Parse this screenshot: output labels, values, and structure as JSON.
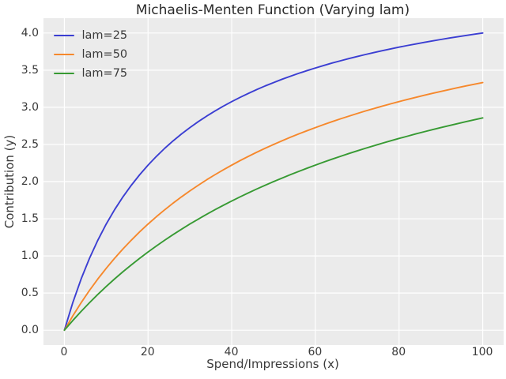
{
  "chart_data": {
    "type": "line",
    "title": "Michaelis-Menten Function (Varying lam)",
    "xlabel": "Spend/Impressions (x)",
    "ylabel": "Contribution (y)",
    "xlim": [
      -5,
      105
    ],
    "ylim": [
      -0.2,
      4.2
    ],
    "xticks": [
      0,
      20,
      40,
      60,
      80,
      100
    ],
    "yticks": [
      0.0,
      0.5,
      1.0,
      1.5,
      2.0,
      2.5,
      3.0,
      3.5,
      4.0
    ],
    "grid": true,
    "grid_color": "#ffffff",
    "plot_background": "#ebebeb",
    "legend_position": "upper-left",
    "x": [
      0,
      2,
      4,
      6,
      8,
      10,
      12,
      14,
      16,
      18,
      20,
      22,
      24,
      26,
      28,
      30,
      32,
      34,
      36,
      38,
      40,
      42,
      44,
      46,
      48,
      50,
      52,
      54,
      56,
      58,
      60,
      62,
      64,
      66,
      68,
      70,
      72,
      74,
      76,
      78,
      80,
      82,
      84,
      86,
      88,
      90,
      92,
      94,
      96,
      98,
      100
    ],
    "series": [
      {
        "name": "lam=25",
        "color": "#3b3ed2",
        "values": [
          0,
          0.37,
          0.69,
          0.968,
          1.212,
          1.429,
          1.622,
          1.795,
          1.951,
          2.093,
          2.222,
          2.34,
          2.449,
          2.549,
          2.642,
          2.727,
          2.807,
          2.881,
          2.951,
          3.016,
          3.077,
          3.134,
          3.188,
          3.239,
          3.288,
          3.333,
          3.377,
          3.418,
          3.457,
          3.494,
          3.529,
          3.563,
          3.596,
          3.626,
          3.656,
          3.684,
          3.711,
          3.737,
          3.762,
          3.786,
          3.81,
          3.832,
          3.853,
          3.874,
          3.894,
          3.913,
          3.932,
          3.95,
          3.967,
          3.984,
          4.0
        ]
      },
      {
        "name": "lam=50",
        "color": "#f6882c",
        "values": [
          0,
          0.192,
          0.37,
          0.536,
          0.69,
          0.833,
          0.968,
          1.094,
          1.212,
          1.324,
          1.429,
          1.528,
          1.622,
          1.711,
          1.795,
          1.875,
          1.951,
          2.024,
          2.093,
          2.159,
          2.222,
          2.283,
          2.34,
          2.396,
          2.449,
          2.5,
          2.549,
          2.596,
          2.642,
          2.685,
          2.727,
          2.768,
          2.807,
          2.845,
          2.881,
          2.917,
          2.951,
          2.984,
          3.016,
          3.047,
          3.077,
          3.106,
          3.134,
          3.162,
          3.188,
          3.214,
          3.239,
          3.264,
          3.288,
          3.311,
          3.333
        ]
      },
      {
        "name": "lam=75",
        "color": "#379a33",
        "values": [
          0,
          0.13,
          0.253,
          0.37,
          0.482,
          0.588,
          0.69,
          0.787,
          0.879,
          0.968,
          1.053,
          1.134,
          1.212,
          1.287,
          1.359,
          1.429,
          1.495,
          1.56,
          1.622,
          1.681,
          1.739,
          1.795,
          1.849,
          1.901,
          1.951,
          2.0,
          2.047,
          2.093,
          2.137,
          2.18,
          2.222,
          2.263,
          2.302,
          2.34,
          2.378,
          2.414,
          2.449,
          2.483,
          2.517,
          2.549,
          2.581,
          2.611,
          2.642,
          2.671,
          2.699,
          2.727,
          2.754,
          2.781,
          2.807,
          2.832,
          2.857
        ]
      }
    ]
  }
}
